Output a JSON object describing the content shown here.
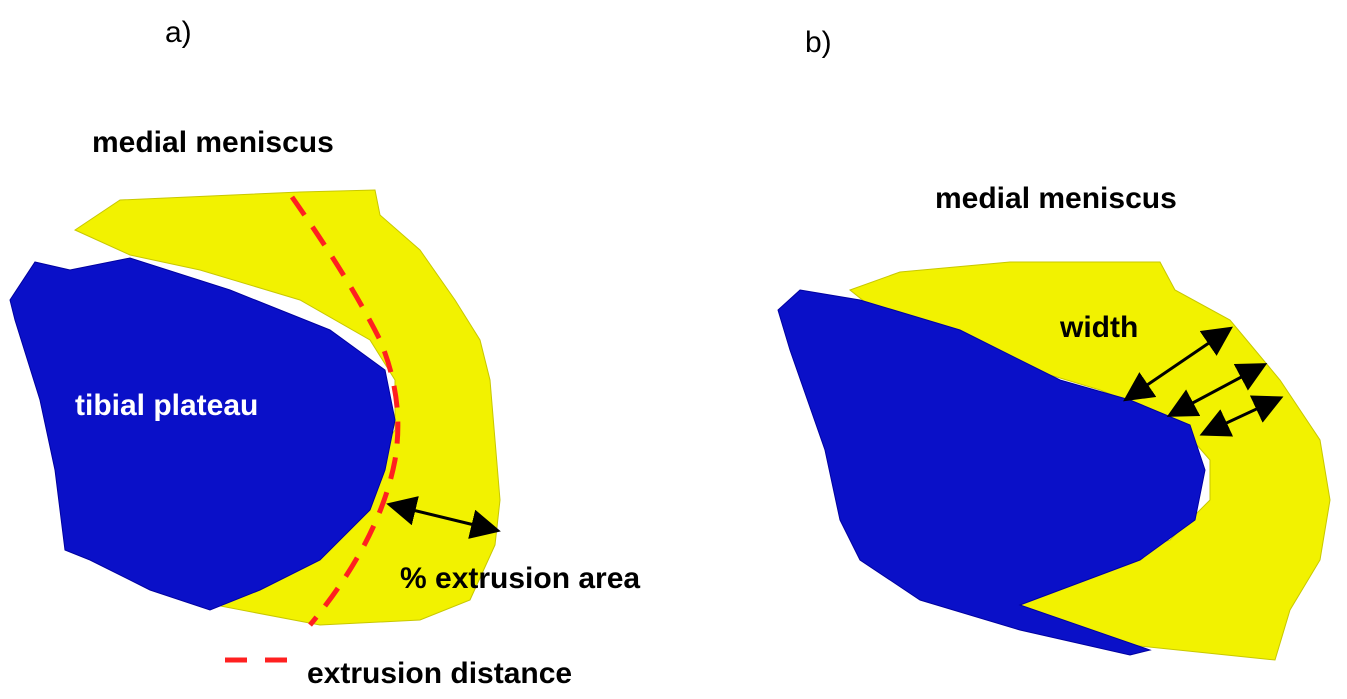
{
  "panels": [
    {
      "label": "a)",
      "meniscus_label": "medial meniscus",
      "plateau_label": "tibial plateau",
      "area_label": "% extrusion area",
      "legend_label": "extrusion distance"
    },
    {
      "label": "b)",
      "meniscus_label": "medial meniscus",
      "width_label": "width"
    }
  ]
}
